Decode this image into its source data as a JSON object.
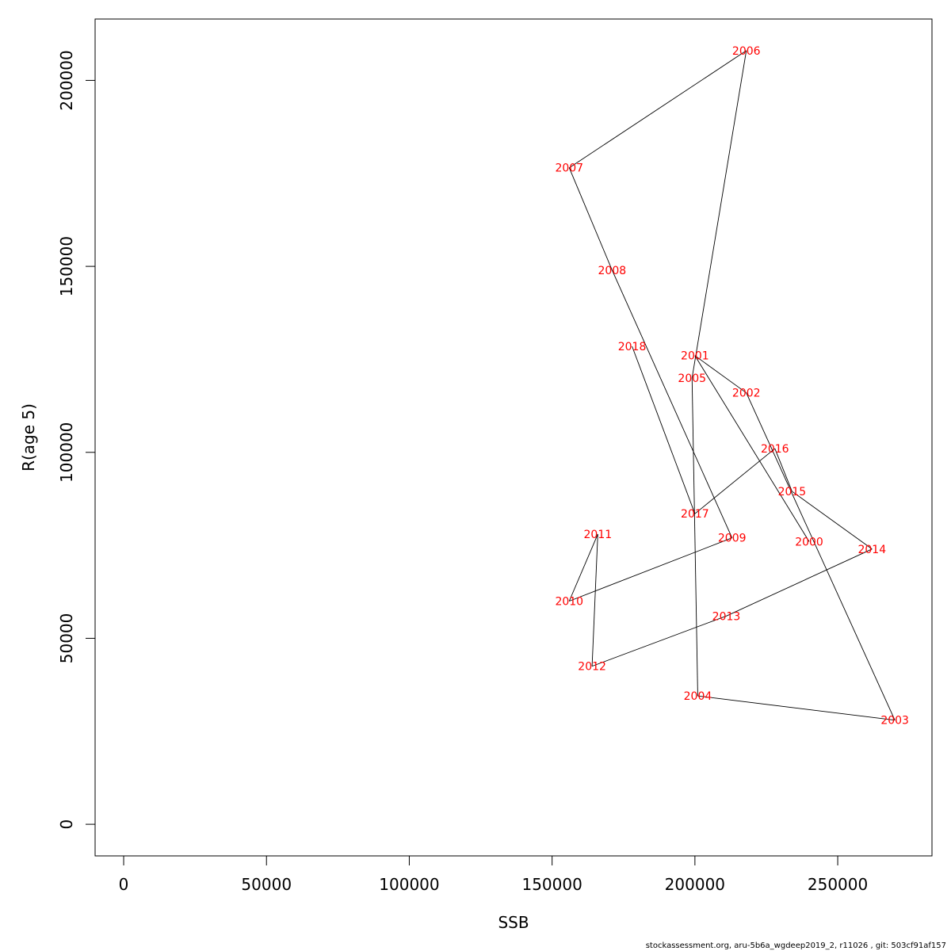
{
  "chart_data": {
    "type": "line",
    "xlabel": "SSB",
    "ylabel": "R(age 5)",
    "xlim": [
      -10000,
      283000
    ],
    "ylim": [
      -8500,
      216500
    ],
    "x_ticks": [
      0,
      50000,
      100000,
      150000,
      200000,
      250000
    ],
    "y_ticks": [
      0,
      50000,
      100000,
      150000,
      200000
    ],
    "x_tick_labels": [
      "0",
      "50000",
      "100000",
      "150000",
      "200000",
      "250000"
    ],
    "y_tick_labels": [
      "0",
      "50000",
      "100000",
      "150000",
      "200000"
    ],
    "line_color": "#000000",
    "label_color": "#ff0000",
    "points": [
      {
        "year": "2000",
        "ssb": 240000,
        "r": 76000
      },
      {
        "year": "2001",
        "ssb": 200000,
        "r": 126000
      },
      {
        "year": "2002",
        "ssb": 218000,
        "r": 116000
      },
      {
        "year": "2003",
        "ssb": 270000,
        "r": 28000
      },
      {
        "year": "2004",
        "ssb": 201000,
        "r": 34500
      },
      {
        "year": "2005",
        "ssb": 199000,
        "r": 120000
      },
      {
        "year": "2006",
        "ssb": 218000,
        "r": 208000
      },
      {
        "year": "2007",
        "ssb": 156000,
        "r": 176500
      },
      {
        "year": "2008",
        "ssb": 171000,
        "r": 149000
      },
      {
        "year": "2009",
        "ssb": 213000,
        "r": 77000
      },
      {
        "year": "2010",
        "ssb": 156000,
        "r": 60000
      },
      {
        "year": "2011",
        "ssb": 166000,
        "r": 78000
      },
      {
        "year": "2012",
        "ssb": 164000,
        "r": 42500
      },
      {
        "year": "2013",
        "ssb": 211000,
        "r": 56000
      },
      {
        "year": "2014",
        "ssb": 262000,
        "r": 74000
      },
      {
        "year": "2015",
        "ssb": 234000,
        "r": 89500
      },
      {
        "year": "2016",
        "ssb": 228000,
        "r": 101000
      },
      {
        "year": "2017",
        "ssb": 200000,
        "r": 83500
      },
      {
        "year": "2018",
        "ssb": 178000,
        "r": 128500
      }
    ]
  },
  "footer": {
    "text": "stockassessment.org, aru-5b6a_wgdeep2019_2, r11026 , git: 503cf91af157"
  }
}
